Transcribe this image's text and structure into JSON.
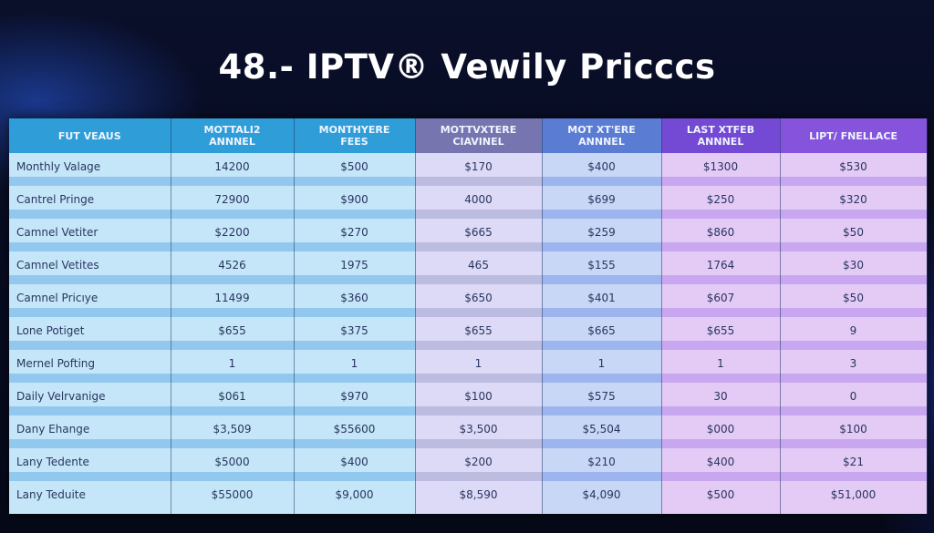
{
  "title": "48.- IPTV® Vewily Pricccs",
  "table": {
    "headers": [
      "FUT VEAUS",
      "MOTTALI2\nANNNEL",
      "MONTHYERE\nFEES",
      "MOTTVXTERE\nCIAVINEL",
      "MOT XT'ERE\nANNNEL",
      "LAST XTFEB\nANNNEL",
      "LIPT/ FNELLACE"
    ],
    "rows": [
      [
        "Monthly Valage",
        "14200",
        "$500",
        "$170",
        "$400",
        "$1300",
        "$530"
      ],
      [
        "Cantrel Pringe",
        "72900",
        "$900",
        "4000",
        "$699",
        "$250",
        "$320"
      ],
      [
        "Camnel Vetiter",
        "$2200",
        "$270",
        "$665",
        "$259",
        "$860",
        "$50"
      ],
      [
        "Camnel Vetites",
        "4526",
        "1975",
        "465",
        "$155",
        "1764",
        "$30"
      ],
      [
        "Camnel Pricıye",
        "11499",
        "$360",
        "$650",
        "$401",
        "$607",
        "$50"
      ],
      [
        "Lone Potiget",
        "$655",
        "$375",
        "$655",
        "$665",
        "$655",
        "9"
      ],
      [
        "Mernel Pofting",
        "1",
        "1",
        "1",
        "1",
        "1",
        "3"
      ],
      [
        "Daily Velrvanige",
        "$061",
        "$970",
        "$100",
        "$575",
        "30",
        "0"
      ],
      [
        "Dany Ehange",
        "$3,509",
        "$55600",
        "$3,500",
        "$5,504",
        "$000",
        "$100"
      ],
      [
        "Lany Tedente",
        "$5000",
        "$400",
        "$200",
        "$210",
        "$400",
        "$21"
      ],
      [
        "Lany Teduite",
        "$55000",
        "$9,000",
        "$8,590",
        "$4,090",
        "$500",
        "$51,000"
      ]
    ]
  },
  "colors": {
    "background": "#070b1f",
    "header_blue": "#2f9ed8",
    "header_slate": "#7775b0",
    "header_periwinkle": "#5a7cd2",
    "header_violet": "#7449d4",
    "header_purple": "#8654dc"
  }
}
